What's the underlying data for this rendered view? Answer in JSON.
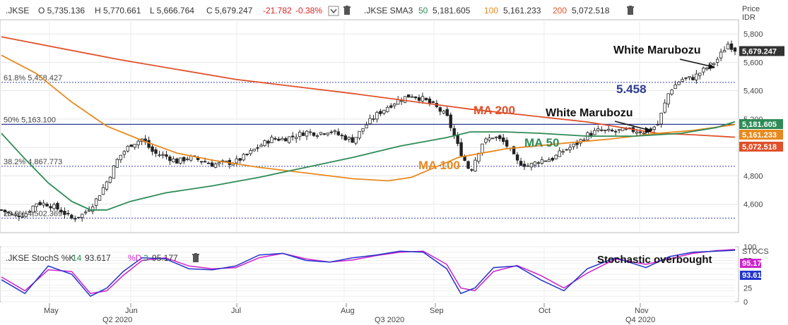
{
  "price_pane": {
    "symbol": ".JKSE",
    "ohlc": [
      {
        "key": "O",
        "value": "5,735.136"
      },
      {
        "key": "H",
        "value": "5,770.661"
      },
      {
        "key": "L",
        "value": "5,666.764"
      },
      {
        "key": "C",
        "value": "5,679.247"
      }
    ],
    "change": "-21.782",
    "change_pct": "-0.38%",
    "sma_label": ".JKSE SMA3",
    "sma_values": [
      {
        "period": "50",
        "value": "5,181.605",
        "color": "#2e8b57"
      },
      {
        "period": "100",
        "value": "5,161.233",
        "color": "#e8891e"
      },
      {
        "period": "200",
        "value": "5,072.518",
        "color": "#e0502a"
      }
    ],
    "axis_title_1": "Price",
    "axis_title_2": "IDR",
    "fib_levels": [
      {
        "label": "61.8%  5,458.427",
        "value": 5458.427
      },
      {
        "label": "50%    5,163.100",
        "value": 5163.1
      },
      {
        "label": "38.2%  4,867.773",
        "value": 4867.773
      },
      {
        "label": "23.6%  4,502.369",
        "value": 4502.369
      }
    ],
    "last_price_label": "5,679.247",
    "ma_labels": [
      {
        "period": "50",
        "text": "5,181.605",
        "color": "#2e8b57"
      },
      {
        "period": "100",
        "text": "5,161.233",
        "color": "#e8891e"
      },
      {
        "period": "200",
        "text": "5,072.518",
        "color": "#e0502a"
      }
    ],
    "annotations": {
      "white_marubozu_1": "White Marubozu",
      "white_marubozu_2": "White Marubozu",
      "level": "5.458",
      "ma200": "MA 200",
      "ma50": "MA 50",
      "ma100": "MA 100"
    }
  },
  "stoch_pane": {
    "label_main": ".JKSE StochS %K",
    "k_period": "14",
    "k_value": "93.617",
    "d_label": "%D",
    "d_period": "3",
    "d_value": "95.177",
    "axis_title": "STOCS",
    "annotation": "Stochastic overbought",
    "k_color": "#2233cc",
    "d_color": "#cc22cc"
  },
  "chart_data": {
    "type": "line",
    "price": {
      "ylim": [
        4400,
        5900
      ],
      "yticks": [
        4600,
        4800,
        5000,
        5200,
        5400,
        5600,
        5800
      ],
      "close_path": [
        [
          0,
          4560
        ],
        [
          5,
          4520
        ],
        [
          10,
          4530
        ],
        [
          15,
          4610
        ],
        [
          20,
          4600
        ],
        [
          25,
          4560
        ],
        [
          30,
          4500
        ],
        [
          35,
          4530
        ],
        [
          40,
          4620
        ],
        [
          45,
          4760
        ],
        [
          50,
          4930
        ],
        [
          55,
          5020
        ],
        [
          60,
          5060
        ],
        [
          65,
          4960
        ],
        [
          70,
          4940
        ],
        [
          75,
          4900
        ],
        [
          80,
          4930
        ],
        [
          85,
          4910
        ],
        [
          90,
          4880
        ],
        [
          95,
          4890
        ],
        [
          100,
          4900
        ],
        [
          105,
          4950
        ],
        [
          110,
          5010
        ],
        [
          115,
          5060
        ],
        [
          120,
          5060
        ],
        [
          125,
          5080
        ],
        [
          130,
          5110
        ],
        [
          135,
          5100
        ],
        [
          140,
          5120
        ],
        [
          145,
          5080
        ],
        [
          150,
          5050
        ],
        [
          155,
          5150
        ],
        [
          160,
          5230
        ],
        [
          165,
          5290
        ],
        [
          170,
          5340
        ],
        [
          175,
          5370
        ],
        [
          180,
          5340
        ],
        [
          185,
          5290
        ],
        [
          190,
          5220
        ],
        [
          195,
          5000
        ],
        [
          200,
          4830
        ],
        [
          205,
          5030
        ],
        [
          210,
          5080
        ],
        [
          215,
          5030
        ],
        [
          220,
          4900
        ],
        [
          225,
          4870
        ],
        [
          230,
          4910
        ],
        [
          235,
          4920
        ],
        [
          240,
          4980
        ],
        [
          245,
          5020
        ],
        [
          250,
          5090
        ],
        [
          255,
          5120
        ],
        [
          260,
          5110
        ],
        [
          265,
          5120
        ],
        [
          270,
          5120
        ],
        [
          275,
          5110
        ],
        [
          280,
          5160
        ],
        [
          285,
          5400
        ],
        [
          290,
          5480
        ],
        [
          295,
          5490
        ],
        [
          300,
          5550
        ],
        [
          305,
          5610
        ],
        [
          310,
          5730
        ],
        [
          313,
          5690
        ]
      ],
      "sma50_path": [
        [
          0,
          5100
        ],
        [
          10,
          4920
        ],
        [
          20,
          4750
        ],
        [
          30,
          4620
        ],
        [
          38,
          4560
        ],
        [
          45,
          4560
        ],
        [
          55,
          4620
        ],
        [
          70,
          4680
        ],
        [
          90,
          4730
        ],
        [
          110,
          4790
        ],
        [
          130,
          4860
        ],
        [
          150,
          4930
        ],
        [
          170,
          5010
        ],
        [
          190,
          5070
        ],
        [
          200,
          5110
        ],
        [
          215,
          5110
        ],
        [
          230,
          5100
        ],
        [
          250,
          5080
        ],
        [
          270,
          5080
        ],
        [
          290,
          5100
        ],
        [
          305,
          5140
        ],
        [
          313,
          5181.605
        ]
      ],
      "sma100_path": [
        [
          0,
          5650
        ],
        [
          15,
          5520
        ],
        [
          30,
          5320
        ],
        [
          45,
          5150
        ],
        [
          60,
          5050
        ],
        [
          75,
          4960
        ],
        [
          90,
          4910
        ],
        [
          110,
          4860
        ],
        [
          130,
          4820
        ],
        [
          150,
          4780
        ],
        [
          165,
          4765
        ],
        [
          175,
          4790
        ],
        [
          195,
          4930
        ],
        [
          215,
          4990
        ],
        [
          240,
          5030
        ],
        [
          260,
          5060
        ],
        [
          280,
          5100
        ],
        [
          295,
          5120
        ],
        [
          313,
          5161.233
        ]
      ],
      "sma200_path": [
        [
          0,
          5780
        ],
        [
          50,
          5620
        ],
        [
          100,
          5480
        ],
        [
          150,
          5380
        ],
        [
          200,
          5270
        ],
        [
          250,
          5180
        ],
        [
          280,
          5100
        ],
        [
          295,
          5090
        ],
        [
          313,
          5072.518
        ]
      ]
    },
    "stochastic": {
      "ylim": [
        0,
        100
      ],
      "yticks": [
        0,
        25,
        50,
        75,
        100
      ],
      "k": [
        [
          0,
          40
        ],
        [
          10,
          15
        ],
        [
          20,
          65
        ],
        [
          30,
          50
        ],
        [
          38,
          10
        ],
        [
          45,
          25
        ],
        [
          52,
          55
        ],
        [
          60,
          80
        ],
        [
          70,
          78
        ],
        [
          80,
          60
        ],
        [
          90,
          58
        ],
        [
          100,
          65
        ],
        [
          110,
          85
        ],
        [
          120,
          88
        ],
        [
          130,
          75
        ],
        [
          140,
          72
        ],
        [
          150,
          80
        ],
        [
          160,
          85
        ],
        [
          170,
          92
        ],
        [
          180,
          90
        ],
        [
          190,
          60
        ],
        [
          196,
          15
        ],
        [
          202,
          25
        ],
        [
          210,
          62
        ],
        [
          220,
          65
        ],
        [
          230,
          40
        ],
        [
          240,
          20
        ],
        [
          250,
          60
        ],
        [
          262,
          80
        ],
        [
          275,
          62
        ],
        [
          285,
          82
        ],
        [
          295,
          90
        ],
        [
          305,
          92
        ],
        [
          313,
          93.617
        ]
      ],
      "d": [
        [
          0,
          45
        ],
        [
          10,
          20
        ],
        [
          20,
          58
        ],
        [
          30,
          55
        ],
        [
          38,
          15
        ],
        [
          45,
          20
        ],
        [
          52,
          48
        ],
        [
          60,
          75
        ],
        [
          70,
          80
        ],
        [
          80,
          65
        ],
        [
          90,
          60
        ],
        [
          100,
          62
        ],
        [
          110,
          80
        ],
        [
          120,
          88
        ],
        [
          130,
          78
        ],
        [
          140,
          72
        ],
        [
          150,
          76
        ],
        [
          160,
          84
        ],
        [
          170,
          90
        ],
        [
          180,
          92
        ],
        [
          190,
          68
        ],
        [
          196,
          25
        ],
        [
          202,
          20
        ],
        [
          210,
          55
        ],
        [
          220,
          66
        ],
        [
          230,
          48
        ],
        [
          240,
          25
        ],
        [
          250,
          52
        ],
        [
          262,
          78
        ],
        [
          275,
          68
        ],
        [
          285,
          78
        ],
        [
          295,
          88
        ],
        [
          305,
          93
        ],
        [
          313,
          95.177
        ]
      ]
    },
    "x_months": [
      "May",
      "Jun",
      "Jul",
      "Aug",
      "Sep",
      "Oct",
      "Nov"
    ],
    "x_quarters": [
      "Q2 2020",
      "Q3 2020",
      "Q4 2020"
    ]
  }
}
